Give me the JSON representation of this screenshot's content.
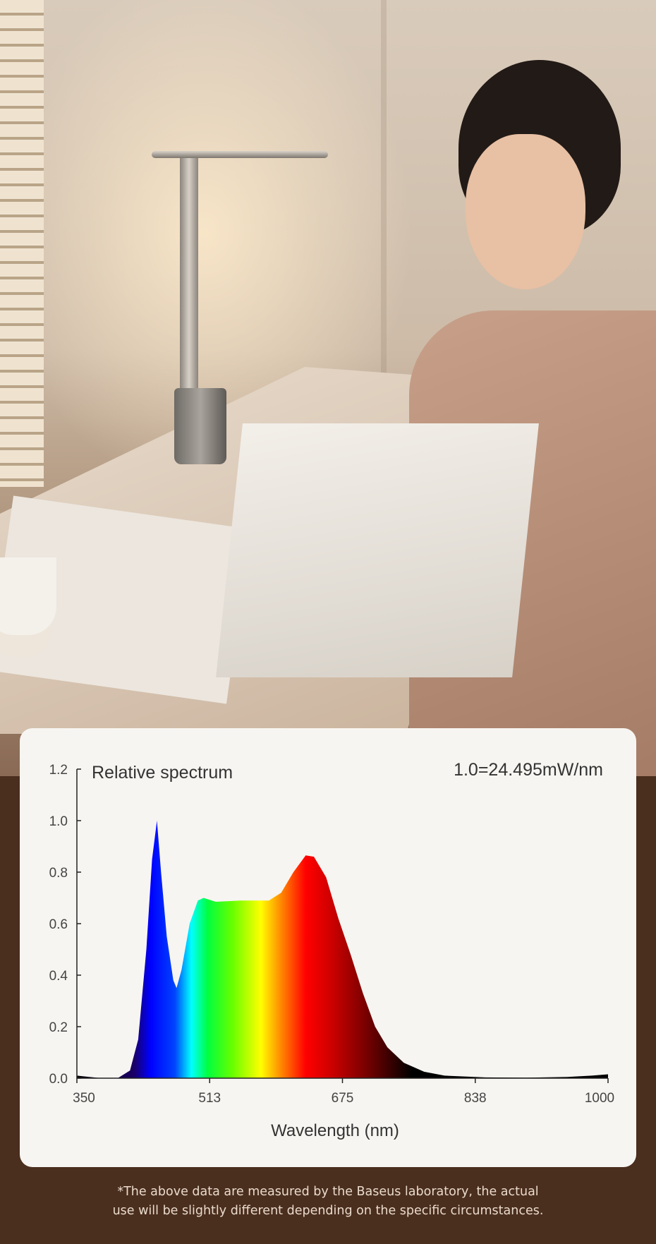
{
  "chart_data": {
    "type": "area",
    "title": "Relative spectrum",
    "annotation": "1.0=24.495mW/nm",
    "xlabel": "Wavelength (nm)",
    "ylabel": "",
    "xlim": [
      350,
      1000
    ],
    "ylim": [
      0,
      1.2
    ],
    "xticks": [
      "350",
      "513",
      "675",
      "838",
      "1000"
    ],
    "yticks": [
      "0.0",
      "0.2",
      "0.4",
      "0.6",
      "0.8",
      "1.0",
      "1.2"
    ],
    "grid": false,
    "fill": "visible-spectrum color gradient",
    "x": [
      350,
      380,
      400,
      415,
      425,
      435,
      442,
      448,
      453,
      460,
      468,
      472,
      478,
      488,
      498,
      505,
      520,
      550,
      585,
      600,
      615,
      630,
      640,
      655,
      670,
      685,
      700,
      715,
      730,
      750,
      775,
      800,
      850,
      900,
      950,
      980,
      1000
    ],
    "y": [
      0.01,
      0.0,
      0.0,
      0.03,
      0.15,
      0.5,
      0.85,
      1.0,
      0.8,
      0.55,
      0.38,
      0.35,
      0.42,
      0.6,
      0.69,
      0.7,
      0.685,
      0.69,
      0.69,
      0.72,
      0.8,
      0.865,
      0.86,
      0.78,
      0.62,
      0.48,
      0.33,
      0.2,
      0.12,
      0.06,
      0.025,
      0.01,
      0.003,
      0.002,
      0.005,
      0.01,
      0.015
    ]
  },
  "footer": {
    "line1": "*The above data are measured by the Baseus laboratory, the actual",
    "line2": "use will be slightly different depending on the specific circumstances."
  },
  "colors": {
    "card": "#f7f5f1",
    "background": "#4a2e1e",
    "text": "#333333",
    "footer_text": "#eadbcc"
  }
}
